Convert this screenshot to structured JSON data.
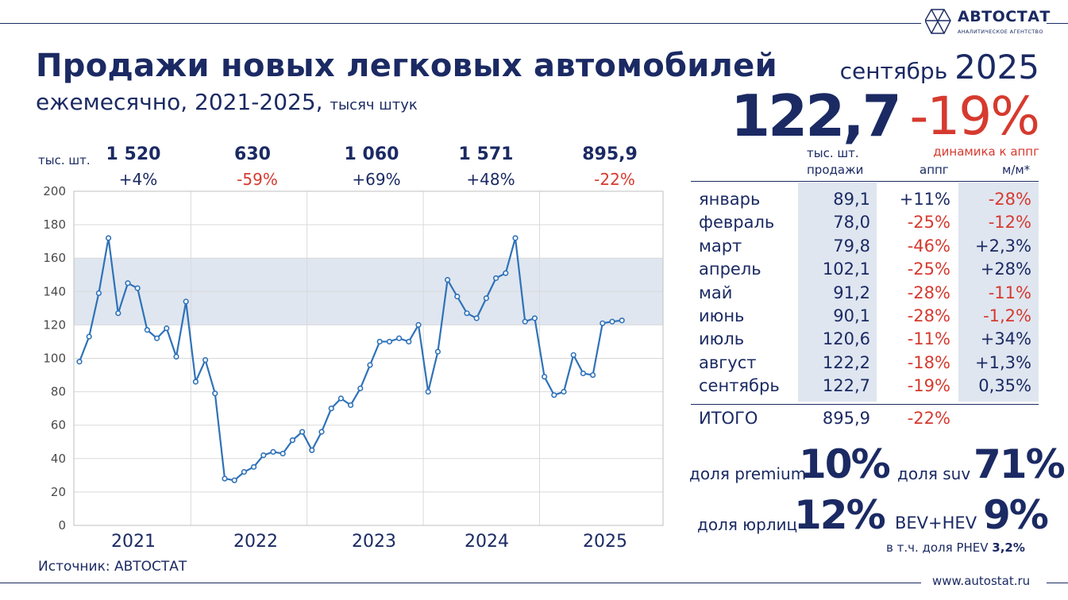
{
  "brand": {
    "name": "АВТОСТАТ",
    "tagline": "АНАЛИТИЧЕСКОЕ АГЕНТСТВО",
    "url": "www.autostat.ru"
  },
  "header": {
    "title": "Продажи новых легковых автомобилей",
    "subtitle_main": "ежемесячно, 2021-2025,",
    "subtitle_unit": "тысяч штук",
    "month": "сентябрь",
    "year": "2025"
  },
  "headline": {
    "value": "122,7",
    "value_unit": "тыс. шт.",
    "value_label": "продажи",
    "change": "-19%",
    "change_label": "динамика к аппг"
  },
  "year_summary": {
    "unit_label": "тыс. шт.",
    "years": [
      {
        "total": "1 520",
        "change": "+4%",
        "color": "#1b2a63"
      },
      {
        "total": "630",
        "change": "-59%",
        "color": "#d63a2f"
      },
      {
        "total": "1 060",
        "change": "+69%",
        "color": "#1b2a63"
      },
      {
        "total": "1 571",
        "change": "+48%",
        "color": "#1b2a63"
      },
      {
        "total": "895,9",
        "change": "-22%",
        "color": "#d63a2f"
      }
    ]
  },
  "table": {
    "col_yoy": "аппг",
    "col_mom": "м/м*",
    "rows": [
      {
        "month": "январь",
        "value": "89,1",
        "yoy": "+11%",
        "mom": "-28%"
      },
      {
        "month": "февраль",
        "value": "78,0",
        "yoy": "-25%",
        "mom": "-12%"
      },
      {
        "month": "март",
        "value": "79,8",
        "yoy": "-46%",
        "mom": "+2,3%"
      },
      {
        "month": "апрель",
        "value": "102,1",
        "yoy": "-25%",
        "mom": "+28%"
      },
      {
        "month": "май",
        "value": "91,2",
        "yoy": "-28%",
        "mom": "-11%"
      },
      {
        "month": "июнь",
        "value": "90,1",
        "yoy": "-28%",
        "mom": "-1,2%"
      },
      {
        "month": "июль",
        "value": "120,6",
        "yoy": "-11%",
        "mom": "+34%"
      },
      {
        "month": "август",
        "value": "122,2",
        "yoy": "-18%",
        "mom": "+1,3%"
      },
      {
        "month": "сентябрь",
        "value": "122,7",
        "yoy": "-19%",
        "mom": "0,35%"
      }
    ],
    "total": {
      "label": "ИТОГО",
      "value": "895,9",
      "yoy": "-22%"
    }
  },
  "shares": {
    "premium_label": "доля premium",
    "premium_value": "10%",
    "suv_label": "доля suv",
    "suv_value": "71%",
    "corp_label": "доля юрлиц",
    "corp_value": "12%",
    "ev_label": "BEV+HEV",
    "ev_value": "9%",
    "phev_label": "в т.ч. доля PHEV",
    "phev_value": "3,2%"
  },
  "source": "Источник: АВТОСТАТ",
  "colors": {
    "navy": "#1b2a63",
    "red": "#d63a2f",
    "line": "#2f72b8",
    "band": "#dfe6f0"
  },
  "chart_data": {
    "type": "line",
    "ylim": [
      0,
      200
    ],
    "y_ticks": [
      "0",
      "20",
      "40",
      "60",
      "80",
      "100",
      "120",
      "140",
      "160",
      "180",
      "200"
    ],
    "x_labels": [
      "2021",
      "2022",
      "2023",
      "2024",
      "2025"
    ],
    "band": [
      120,
      160
    ],
    "grid": true,
    "series": [
      {
        "values": [
          98,
          113,
          139,
          172,
          127,
          145,
          142,
          117,
          112,
          118,
          101,
          134,
          86,
          99,
          79,
          28,
          27,
          32,
          35,
          42,
          44,
          43,
          51,
          56,
          45,
          56,
          70,
          76,
          72,
          82,
          96,
          110,
          110,
          112,
          110,
          120,
          80,
          104,
          147,
          137,
          127,
          124,
          136,
          148,
          151,
          172,
          122,
          124,
          89,
          78,
          80,
          102,
          91,
          90,
          121,
          122,
          122.7
        ]
      }
    ]
  }
}
